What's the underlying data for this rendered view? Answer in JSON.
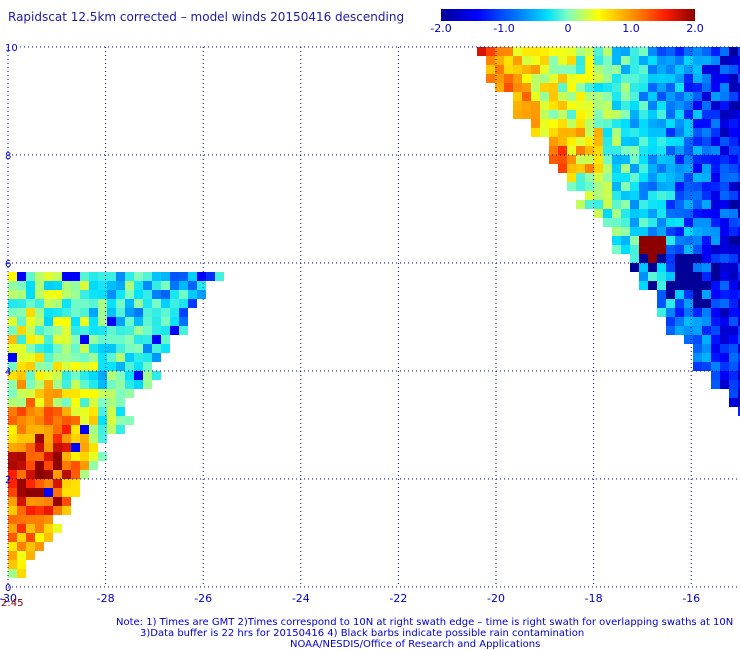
{
  "title": "Rapidscat 12.5km corrected – model winds 20150416 descending",
  "colorbar": {
    "ticks": [
      "-2.0",
      "-1.0",
      "0",
      "1.0",
      "2.0"
    ],
    "tick_values": [
      -2.0,
      -1.0,
      0.0,
      1.0,
      2.0
    ],
    "range": [
      -2.0,
      2.0
    ],
    "colors": [
      "#000096",
      "#0000ff",
      "#0078ff",
      "#00e0ff",
      "#80ffc0",
      "#ffff00",
      "#ff9600",
      "#ff1e00",
      "#8c0000"
    ]
  },
  "axes": {
    "x_ticks": [
      "-30",
      "-28",
      "-26",
      "-24",
      "-22",
      "-20",
      "-18",
      "-16"
    ],
    "x_values": [
      -30,
      -28,
      -26,
      -24,
      -22,
      -20,
      -18,
      -16
    ],
    "y_ticks": [
      "0",
      "2",
      "4",
      "6",
      "8",
      "10"
    ],
    "y_values": [
      0,
      2,
      4,
      6,
      8,
      10
    ],
    "xlim": [
      -30,
      -15.0
    ],
    "ylim": [
      0,
      10
    ],
    "grid": "dotted"
  },
  "swath_time": "2:45",
  "notes": {
    "line1": "Note: 1) Times are GMT 2)Times correspond to 10N at right swath edge – time is right swath for overlapping swaths at 10N",
    "line2": "3)Data buffer is 22 hrs for 20150416 4) Black barbs indicate possible rain contamination",
    "line3": "NOAA/NESDIS/Office of Research and Applications"
  }
}
